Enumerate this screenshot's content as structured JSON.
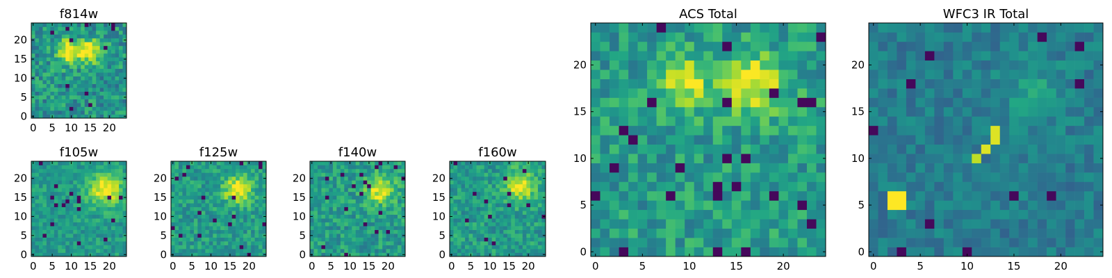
{
  "chart_data": [
    {
      "type": "heatmap",
      "title": "f814w",
      "cmap": "viridis",
      "grid_size": 25,
      "xlim": [
        0,
        25
      ],
      "ylim": [
        0,
        25
      ],
      "xticks": [
        0,
        5,
        10,
        15,
        20
      ],
      "yticks": [
        0,
        5,
        10,
        15,
        20
      ],
      "blobs": [
        {
          "x": 9.5,
          "y": 17.5,
          "sigma": 2.2,
          "amp": 0.5
        },
        {
          "x": 15.5,
          "y": 17.5,
          "sigma": 2.2,
          "amp": 0.5
        }
      ],
      "noise": 0.18,
      "base": 0.52,
      "seed": 11
    },
    {
      "type": "heatmap",
      "title": "f105w",
      "cmap": "viridis",
      "grid_size": 25,
      "xlim": [
        0,
        25
      ],
      "ylim": [
        0,
        25
      ],
      "xticks": [
        0,
        5,
        10,
        15,
        20
      ],
      "yticks": [
        0,
        5,
        10,
        15,
        20
      ],
      "blobs": [
        {
          "x": 19.5,
          "y": 17.5,
          "sigma": 3.0,
          "amp": 0.45
        }
      ],
      "noise": 0.12,
      "base": 0.55,
      "seed": 23
    },
    {
      "type": "heatmap",
      "title": "f125w",
      "cmap": "viridis",
      "grid_size": 25,
      "xlim": [
        0,
        25
      ],
      "ylim": [
        0,
        25
      ],
      "xticks": [
        0,
        5,
        10,
        15,
        20
      ],
      "yticks": [
        0,
        5,
        10,
        15,
        20
      ],
      "blobs": [
        {
          "x": 17.5,
          "y": 17.5,
          "sigma": 2.6,
          "amp": 0.45
        }
      ],
      "noise": 0.14,
      "base": 0.55,
      "seed": 37
    },
    {
      "type": "heatmap",
      "title": "f140w",
      "cmap": "viridis",
      "grid_size": 25,
      "xlim": [
        0,
        25
      ],
      "ylim": [
        0,
        25
      ],
      "xticks": [
        0,
        5,
        10,
        15,
        20
      ],
      "yticks": [
        0,
        5,
        10,
        15,
        20
      ],
      "blobs": [
        {
          "x": 18.5,
          "y": 17.5,
          "sigma": 2.6,
          "amp": 0.45
        }
      ],
      "noise": 0.15,
      "base": 0.55,
      "seed": 41
    },
    {
      "type": "heatmap",
      "title": "f160w",
      "cmap": "viridis",
      "grid_size": 25,
      "xlim": [
        0,
        25
      ],
      "ylim": [
        0,
        25
      ],
      "xticks": [
        0,
        5,
        10,
        15,
        20
      ],
      "yticks": [
        0,
        5,
        10,
        15,
        20
      ],
      "blobs": [
        {
          "x": 18.5,
          "y": 18.5,
          "sigma": 2.8,
          "amp": 0.45
        }
      ],
      "noise": 0.14,
      "base": 0.55,
      "seed": 53
    },
    {
      "type": "heatmap",
      "title": "ACS Total",
      "cmap": "viridis",
      "grid_size": 25,
      "xlim": [
        0,
        25
      ],
      "ylim": [
        0,
        25
      ],
      "xticks": [
        0,
        5,
        10,
        15,
        20
      ],
      "yticks": [
        0,
        5,
        10,
        15,
        20
      ],
      "blobs": [
        {
          "x": 10.0,
          "y": 18.5,
          "sigma": 2.0,
          "amp": 0.4
        },
        {
          "x": 17.5,
          "y": 18.5,
          "sigma": 2.2,
          "amp": 0.45
        }
      ],
      "noise": 0.16,
      "base": 0.55,
      "seed": 67
    },
    {
      "type": "heatmap",
      "title": "WFC3 IR Total",
      "cmap": "viridis",
      "grid_size": 25,
      "xlim": [
        0,
        25
      ],
      "ylim": [
        0,
        25
      ],
      "xticks": [
        0,
        5,
        10,
        15,
        20
      ],
      "yticks": [
        0,
        5,
        10,
        15,
        20
      ],
      "blobs": [
        {
          "x": 17.5,
          "y": 17.5,
          "sigma": 2.4,
          "amp": 0.15
        }
      ],
      "hot_pixels": [
        {
          "x": 2,
          "y": 5,
          "w": 2,
          "h": 2,
          "v": 1.0
        },
        {
          "x": 12,
          "y": 11,
          "w": 1,
          "h": 1,
          "v": 0.95
        },
        {
          "x": 13,
          "y": 12,
          "w": 1,
          "h": 2,
          "v": 0.95
        },
        {
          "x": 11,
          "y": 10,
          "w": 1,
          "h": 1,
          "v": 0.9
        }
      ],
      "noise": 0.1,
      "base": 0.42,
      "seed": 79
    }
  ]
}
